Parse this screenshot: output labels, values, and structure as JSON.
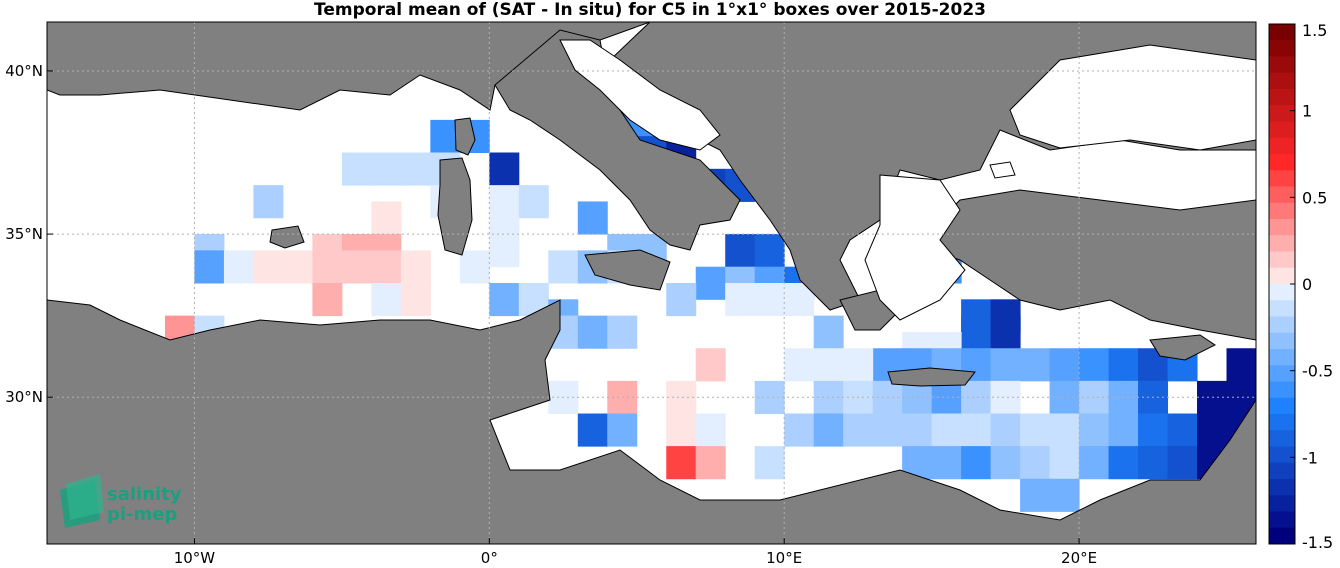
{
  "title": "Temporal mean of (SAT - In situ) for C5 in 1°x1° boxes over 2015-2023",
  "logo": {
    "line1": "salinity",
    "line2": "pi-mep",
    "color": "#1aa07e"
  },
  "colors": {
    "land": "#808080",
    "sea": "#ffffff",
    "coast": "#000000"
  },
  "colorbar": {
    "range": [
      -1.5,
      1.5
    ],
    "tick_labels": [
      "1.5",
      "1",
      "0.5",
      "0",
      "-0.5",
      "-1",
      "-1.5"
    ],
    "tick_values": [
      1.5,
      1,
      0.5,
      0,
      -0.5,
      -1,
      -1.5
    ]
  },
  "chart_data": {
    "type": "heatmap",
    "title": "Temporal mean of (SAT - In situ) for C5 in 1°x1° boxes over 2015-2023",
    "x_ticks": [
      {
        "value": -10,
        "label": "10°W"
      },
      {
        "value": 0,
        "label": "0°"
      },
      {
        "value": 10,
        "label": "10°E"
      },
      {
        "value": 20,
        "label": "20°E"
      }
    ],
    "y_ticks": [
      {
        "value": 40,
        "label": "40°N"
      },
      {
        "value": 35,
        "label": "35°N"
      },
      {
        "value": 30,
        "label": "30°N"
      }
    ],
    "lon_range": [
      -15.0,
      26.0
    ],
    "lat_range": [
      25.5,
      41.5
    ],
    "cells": [
      [
        -1.5,
        38.0,
        -0.7
      ],
      [
        -0.5,
        38.0,
        -0.7
      ],
      [
        -4.5,
        37.0,
        -0.2
      ],
      [
        -3.5,
        37.0,
        -0.2
      ],
      [
        -2.5,
        37.0,
        -0.2
      ],
      [
        -1.5,
        37.0,
        -0.2
      ],
      [
        0.5,
        37.0,
        -1.2
      ],
      [
        -7.5,
        36.0,
        -0.3
      ],
      [
        -1.5,
        36.0,
        -0.1
      ],
      [
        0.5,
        36.0,
        -0.1
      ],
      [
        1.5,
        36.0,
        -0.2
      ],
      [
        -3.5,
        35.5,
        0.1
      ],
      [
        -3.5,
        35.0,
        0.1
      ],
      [
        0.5,
        35.0,
        -0.1
      ],
      [
        -9.5,
        34.5,
        -0.3
      ],
      [
        -5.5,
        34.5,
        0.2
      ],
      [
        -4.5,
        34.5,
        0.3
      ],
      [
        -3.5,
        34.5,
        0.3
      ],
      [
        0.5,
        34.5,
        -0.1
      ],
      [
        -9.5,
        34.0,
        -0.6
      ],
      [
        -8.5,
        34.0,
        -0.1
      ],
      [
        -7.5,
        34.0,
        0.1
      ],
      [
        -6.5,
        34.0,
        0.1
      ],
      [
        -5.5,
        34.0,
        0.2
      ],
      [
        -4.5,
        34.0,
        0.2
      ],
      [
        -3.5,
        34.0,
        0.2
      ],
      [
        -2.5,
        34.0,
        0.1
      ],
      [
        -0.5,
        34.0,
        -0.1
      ],
      [
        -5.5,
        33.0,
        0.3
      ],
      [
        -3.5,
        33.0,
        -0.1
      ],
      [
        -2.5,
        33.0,
        0.1
      ],
      [
        0.5,
        33.0,
        -0.5
      ],
      [
        1.5,
        33.0,
        -0.2
      ],
      [
        -10.5,
        32.0,
        0.35
      ],
      [
        -9.5,
        32.0,
        -0.2
      ],
      [
        4.5,
        38.5,
        -0.7
      ],
      [
        5.5,
        38.5,
        -0.7
      ],
      [
        5.5,
        37.5,
        -1.0
      ],
      [
        6.5,
        37.5,
        -1.3
      ],
      [
        7.5,
        36.5,
        -1.1
      ],
      [
        8.5,
        36.5,
        -1.0
      ],
      [
        3.5,
        35.5,
        -0.6
      ],
      [
        8.5,
        34.5,
        -1.0
      ],
      [
        9.5,
        34.5,
        -0.9
      ],
      [
        4.5,
        34.5,
        -0.4
      ],
      [
        5.5,
        34.5,
        -0.4
      ],
      [
        2.5,
        34.0,
        -0.2
      ],
      [
        3.5,
        34.0,
        -0.4
      ],
      [
        4.5,
        34.0,
        -0.2
      ],
      [
        7.5,
        33.5,
        -0.6
      ],
      [
        8.5,
        33.5,
        -0.4
      ],
      [
        9.5,
        33.5,
        -0.6
      ],
      [
        10.5,
        33.5,
        -0.8
      ],
      [
        6.5,
        33.0,
        -0.3
      ],
      [
        8.5,
        33.0,
        -0.1
      ],
      [
        9.5,
        33.0,
        -0.1
      ],
      [
        10.5,
        33.0,
        -0.1
      ],
      [
        2.5,
        32.5,
        -0.5
      ],
      [
        15.5,
        34.5,
        -0.7
      ],
      [
        15.5,
        34.0,
        -0.7
      ],
      [
        2.5,
        32.0,
        -0.3
      ],
      [
        3.5,
        32.0,
        -0.5
      ],
      [
        4.5,
        32.0,
        -0.3
      ],
      [
        11.5,
        32.0,
        -0.4
      ],
      [
        16.5,
        32.5,
        -0.9
      ],
      [
        17.5,
        32.5,
        -1.2
      ],
      [
        16.5,
        32.0,
        -0.9
      ],
      [
        17.5,
        32.0,
        -1.2
      ],
      [
        14.5,
        31.5,
        -0.1
      ],
      [
        15.5,
        31.5,
        -0.1
      ],
      [
        13.5,
        31.0,
        -0.6
      ],
      [
        14.5,
        31.0,
        -0.6
      ],
      [
        15.5,
        31.0,
        -0.5
      ],
      [
        16.5,
        31.0,
        -0.6
      ],
      [
        17.5,
        31.0,
        -0.5
      ],
      [
        18.5,
        31.0,
        -0.5
      ],
      [
        19.5,
        31.0,
        -0.6
      ],
      [
        20.5,
        31.0,
        -0.7
      ],
      [
        21.5,
        31.0,
        -0.8
      ],
      [
        22.5,
        31.0,
        -1.0
      ],
      [
        23.5,
        31.0,
        -0.8
      ],
      [
        25.5,
        31.0,
        -1.4
      ],
      [
        7.5,
        31.0,
        0.15
      ],
      [
        10.5,
        31.0,
        -0.1
      ],
      [
        11.5,
        31.0,
        -0.1
      ],
      [
        12.5,
        31.0,
        -0.1
      ],
      [
        2.5,
        30.0,
        -0.1
      ],
      [
        4.5,
        30.0,
        0.25
      ],
      [
        6.5,
        30.0,
        0.1
      ],
      [
        9.5,
        30.0,
        -0.3
      ],
      [
        11.5,
        30.0,
        -0.3
      ],
      [
        12.5,
        30.0,
        -0.2
      ],
      [
        13.5,
        30.0,
        -0.3
      ],
      [
        14.5,
        30.0,
        -0.4
      ],
      [
        15.5,
        30.0,
        -0.6
      ],
      [
        16.5,
        30.0,
        -0.3
      ],
      [
        17.5,
        30.0,
        -0.1
      ],
      [
        19.5,
        30.0,
        -0.5
      ],
      [
        20.5,
        30.0,
        -0.3
      ],
      [
        21.5,
        30.0,
        -0.5
      ],
      [
        22.5,
        30.0,
        -0.9
      ],
      [
        24.5,
        30.0,
        -1.4
      ],
      [
        25.5,
        30.0,
        -1.4
      ],
      [
        3.5,
        29.0,
        -0.9
      ],
      [
        4.5,
        29.0,
        -0.5
      ],
      [
        6.5,
        29.0,
        0.1
      ],
      [
        7.5,
        29.0,
        -0.1
      ],
      [
        10.5,
        29.0,
        -0.3
      ],
      [
        11.5,
        29.0,
        -0.5
      ],
      [
        12.5,
        29.0,
        -0.3
      ],
      [
        13.5,
        29.0,
        -0.3
      ],
      [
        14.5,
        29.0,
        -0.3
      ],
      [
        15.5,
        29.0,
        -0.2
      ],
      [
        16.5,
        29.0,
        -0.2
      ],
      [
        17.5,
        29.0,
        -0.3
      ],
      [
        18.5,
        29.0,
        -0.2
      ],
      [
        19.5,
        29.0,
        -0.2
      ],
      [
        20.5,
        29.0,
        -0.4
      ],
      [
        21.5,
        29.0,
        -0.5
      ],
      [
        22.5,
        29.0,
        -0.8
      ],
      [
        23.5,
        29.0,
        -0.9
      ],
      [
        24.5,
        29.0,
        -1.4
      ],
      [
        25.5,
        29.0,
        -1.4
      ],
      [
        6.5,
        28.0,
        0.7
      ],
      [
        7.5,
        28.0,
        0.25
      ],
      [
        9.5,
        28.0,
        -0.2
      ],
      [
        14.5,
        28.0,
        -0.5
      ],
      [
        15.5,
        28.0,
        -0.5
      ],
      [
        16.5,
        28.0,
        -0.7
      ],
      [
        17.5,
        28.0,
        -0.4
      ],
      [
        18.5,
        28.0,
        -0.3
      ],
      [
        19.5,
        28.0,
        -0.2
      ],
      [
        20.5,
        28.0,
        -0.5
      ],
      [
        21.5,
        28.0,
        -0.8
      ],
      [
        22.5,
        28.0,
        -0.9
      ],
      [
        23.5,
        28.0,
        -1.0
      ],
      [
        24.5,
        28.0,
        -1.4
      ],
      [
        18.5,
        27.0,
        -0.5
      ],
      [
        19.5,
        27.0,
        -0.5
      ]
    ]
  }
}
